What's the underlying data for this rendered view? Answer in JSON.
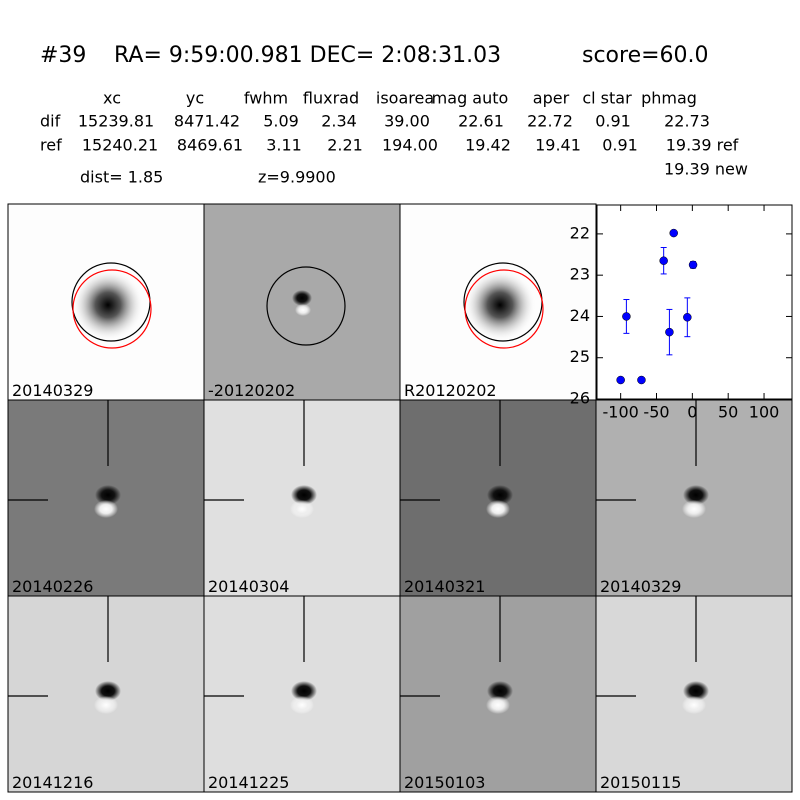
{
  "header": {
    "id": "#39",
    "coords": "RA= 9:59:00.981 DEC= 2:08:31.03",
    "score": "score=60.0",
    "dist": "dist=  1.85",
    "z": "z=9.9900"
  },
  "table": {
    "columns": [
      "xc",
      "yc",
      "fwhm",
      "fluxrad",
      "isoarea",
      "mag auto",
      "aper",
      "cl star",
      "phmag"
    ],
    "rows": [
      {
        "label": "dif",
        "cells": [
          "15239.81",
          "8471.42",
          "5.09",
          "2.34",
          "39.00",
          "22.61",
          "22.72",
          "0.91",
          "22.73"
        ]
      },
      {
        "label": "ref",
        "cells": [
          "15240.21",
          "8469.61",
          "3.11",
          "2.21",
          "194.00",
          "19.42",
          "19.41",
          "0.91",
          "19.39 ref"
        ]
      }
    ],
    "note": "19.39 new"
  },
  "panels": [
    "20140329",
    "-20120202",
    "R20120202",
    "20140226",
    "20140304",
    "20140321",
    "20140329",
    "20141216",
    "20141225",
    "20150103",
    "20150115"
  ],
  "chart_data": {
    "type": "scatter",
    "color": "#0000ff",
    "x": [
      -100,
      -71,
      -92,
      -40,
      -26,
      -32,
      -7,
      1
    ],
    "values": [
      25.54,
      25.54,
      24.0,
      22.65,
      21.98,
      24.38,
      24.02,
      22.75
    ],
    "errors": [
      0.05,
      0.05,
      0.41,
      0.32,
      0.04,
      0.55,
      0.47,
      0.08
    ],
    "xlim": [
      -133,
      139
    ],
    "ylim": [
      26,
      21.3
    ],
    "xticks": [
      -100,
      -50,
      0,
      50,
      100
    ],
    "yticks": [
      22,
      23,
      24,
      25,
      26
    ]
  }
}
